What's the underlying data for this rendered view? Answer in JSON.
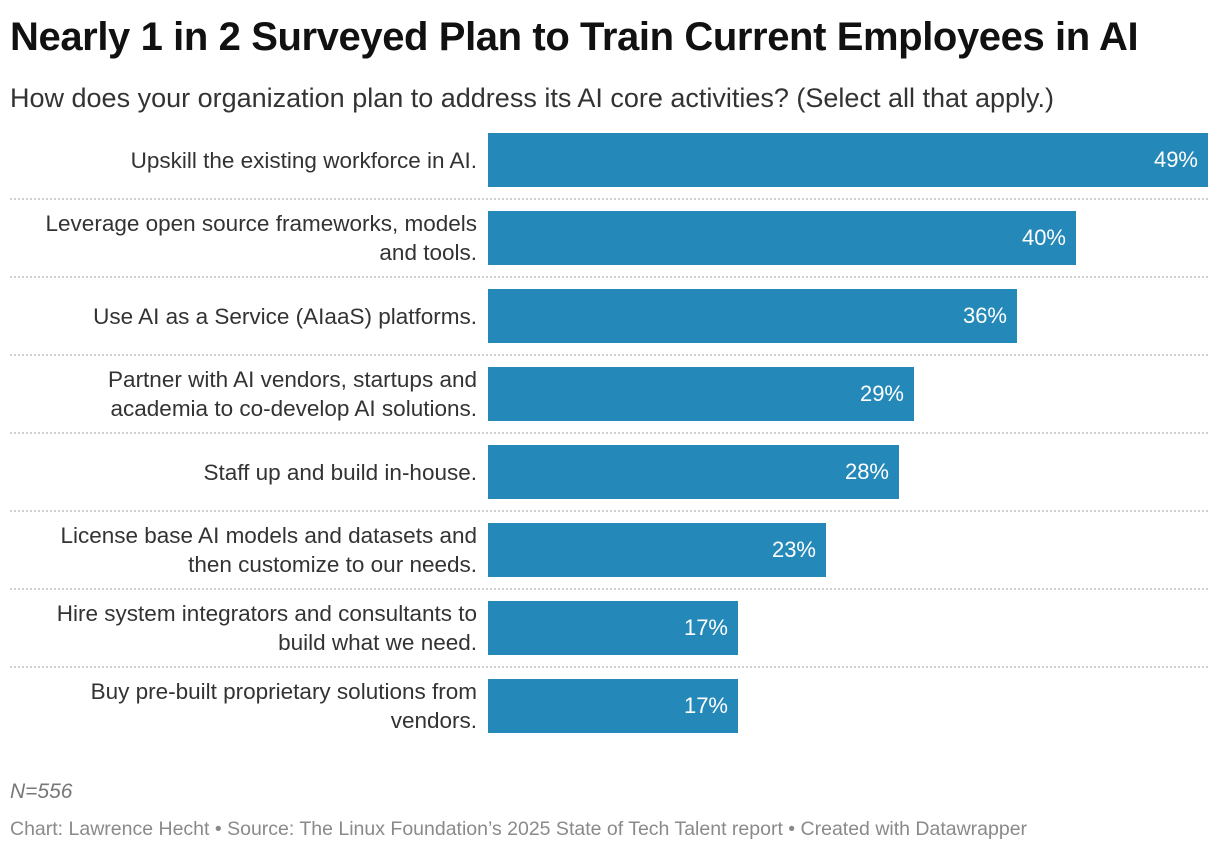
{
  "title": "Nearly 1 in 2 Surveyed Plan to Train Current Employees in AI",
  "subtitle": "How does your organization plan to address its AI core activities? (Select all that apply.)",
  "note": "N=556",
  "footer": "Chart: Lawrence Hecht • Source: The Linux Foundation’s 2025 State of Tech Talent report • Created with Datawrapper",
  "bar_color": "#2489b9",
  "chart_data": {
    "type": "bar",
    "orientation": "horizontal",
    "title": "Nearly 1 in 2 Surveyed Plan to Train Current Employees in AI",
    "subtitle": "How does your organization plan to address its AI core activities? (Select all that apply.)",
    "categories": [
      "Upskill the existing workforce in AI.",
      "Leverage open source frameworks, models and tools.",
      "Use AI as a Service (AIaaS) platforms.",
      "Partner with AI vendors, startups and academia to co-develop AI solutions.",
      "Staff up and build in-house.",
      "License base AI models and datasets and then customize to our needs.",
      "Hire system integrators and consultants to build what we need.",
      "Buy pre-built proprietary solutions from vendors."
    ],
    "label_lines": [
      [
        "Upskill the existing workforce in AI."
      ],
      [
        "Leverage open source frameworks, models",
        "and tools."
      ],
      [
        "Use AI as a Service (AIaaS) platforms."
      ],
      [
        "Partner with AI vendors, startups and",
        "academia to co-develop AI solutions."
      ],
      [
        "Staff up and build in-house."
      ],
      [
        "License base AI models and datasets and",
        "then customize to our needs."
      ],
      [
        "Hire system integrators and consultants to",
        "build what we need."
      ],
      [
        "Buy pre-built proprietary solutions from",
        "vendors."
      ]
    ],
    "values": [
      49,
      40,
      36,
      29,
      28,
      23,
      17,
      17
    ],
    "value_labels": [
      "49%",
      "40%",
      "36%",
      "29%",
      "28%",
      "23%",
      "17%",
      "17%"
    ],
    "unit": "%",
    "xlim": [
      0,
      49
    ],
    "grid": false,
    "legend": "none"
  }
}
